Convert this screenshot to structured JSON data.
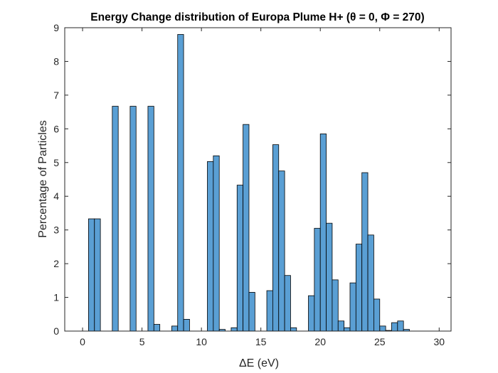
{
  "chart_data": {
    "type": "bar",
    "title": "Energy Change distribution of Europa Plume H+ (θ = 0, Φ = 270)",
    "xlabel": "ΔE (eV)",
    "ylabel": "Percentage of Particles",
    "xlim": [
      -1.5,
      31
    ],
    "ylim": [
      0,
      9
    ],
    "xticks": [
      0,
      5,
      10,
      15,
      20,
      25,
      30
    ],
    "yticks": [
      0,
      1,
      2,
      3,
      4,
      5,
      6,
      7,
      8,
      9
    ],
    "grid": false,
    "bar_color": "#5a9fd4",
    "edge_color": "#000000",
    "bin_width": 0.5,
    "bin_centers": [
      0.75,
      1.25,
      2.75,
      4.25,
      5.75,
      6.25,
      7.75,
      8.25,
      8.75,
      10.75,
      11.25,
      11.75,
      12.75,
      13.25,
      13.75,
      14.25,
      15.75,
      16.25,
      16.75,
      17.25,
      17.75,
      18.25,
      19.25,
      19.75,
      20.25,
      20.75,
      21.25,
      21.75,
      22.25,
      22.75,
      23.25,
      23.75,
      24.25,
      24.75,
      25.25,
      25.75,
      26.25,
      26.75,
      27.25,
      27.75,
      28.25,
      28.75
    ],
    "values": [
      3.33,
      3.33,
      6.67,
      6.67,
      6.67,
      0.2,
      0.15,
      8.8,
      0.35,
      5.03,
      5.2,
      0.05,
      0.1,
      4.33,
      6.13,
      1.15,
      1.2,
      5.53,
      4.75,
      1.65,
      0.1,
      0.0,
      1.05,
      3.05,
      5.85,
      3.2,
      1.52,
      0.3,
      0.1,
      1.43,
      2.58,
      4.7,
      2.85,
      0.95,
      0.15,
      0.02,
      0.25,
      0.3,
      0.05,
      0.0,
      0.0,
      0.0
    ]
  }
}
